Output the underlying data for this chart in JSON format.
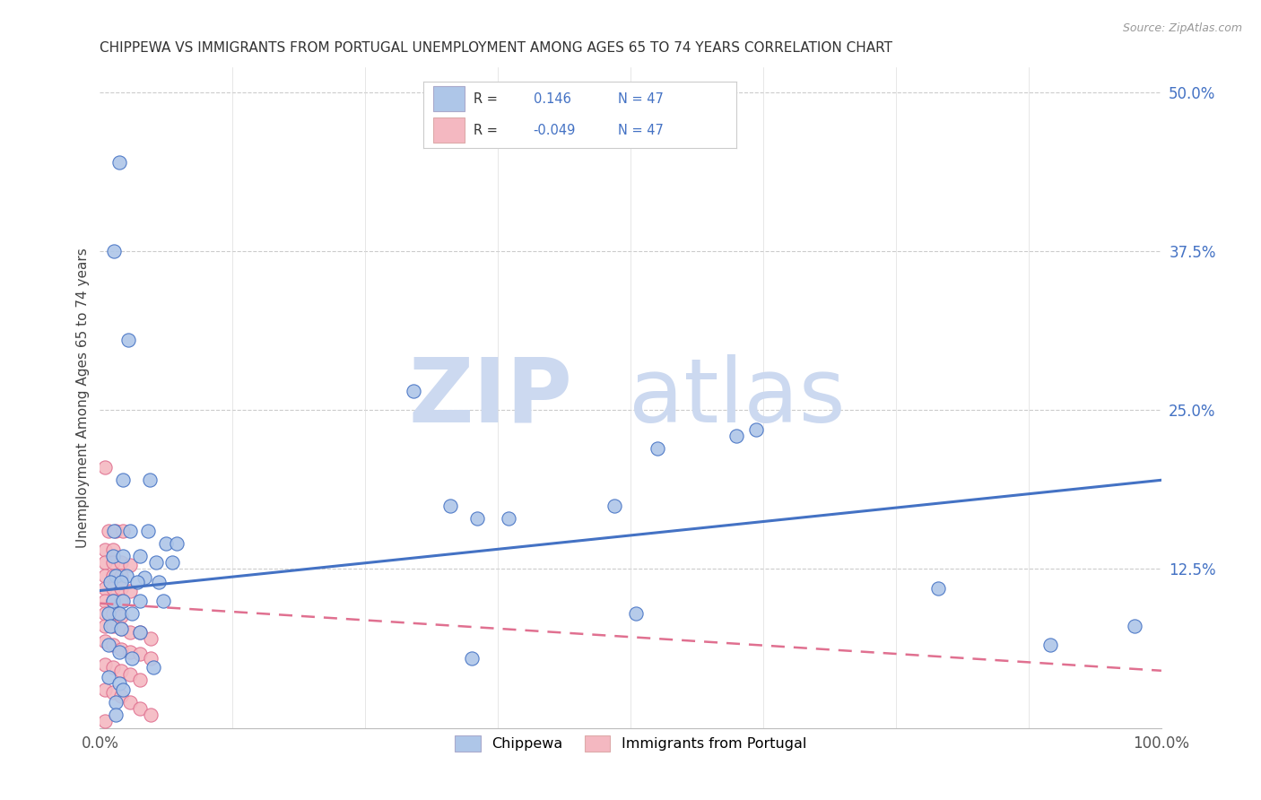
{
  "title": "CHIPPEWA VS IMMIGRANTS FROM PORTUGAL UNEMPLOYMENT AMONG AGES 65 TO 74 YEARS CORRELATION CHART",
  "source": "Source: ZipAtlas.com",
  "ylabel": "Unemployment Among Ages 65 to 74 years",
  "xlim": [
    0.0,
    1.0
  ],
  "ylim": [
    0.0,
    0.52
  ],
  "background_color": "#ffffff",
  "chippewa_color": "#aec6e8",
  "portugal_color": "#f4b8c1",
  "line1_color": "#4472c4",
  "line2_color": "#e07090",
  "legend_R1": "0.146",
  "legend_R2": "-0.049",
  "legend_N": "47",
  "chip_line_x": [
    0.0,
    1.0
  ],
  "chip_line_y": [
    0.108,
    0.195
  ],
  "port_line_x": [
    0.0,
    1.0
  ],
  "port_line_y": [
    0.098,
    0.045
  ],
  "chippewa_points": [
    [
      0.018,
      0.445
    ],
    [
      0.013,
      0.375
    ],
    [
      0.027,
      0.305
    ],
    [
      0.047,
      0.195
    ],
    [
      0.022,
      0.195
    ],
    [
      0.013,
      0.155
    ],
    [
      0.028,
      0.155
    ],
    [
      0.045,
      0.155
    ],
    [
      0.062,
      0.145
    ],
    [
      0.072,
      0.145
    ],
    [
      0.012,
      0.135
    ],
    [
      0.022,
      0.135
    ],
    [
      0.038,
      0.135
    ],
    [
      0.053,
      0.13
    ],
    [
      0.068,
      0.13
    ],
    [
      0.015,
      0.12
    ],
    [
      0.025,
      0.12
    ],
    [
      0.042,
      0.118
    ],
    [
      0.01,
      0.115
    ],
    [
      0.02,
      0.115
    ],
    [
      0.035,
      0.115
    ],
    [
      0.055,
      0.115
    ],
    [
      0.012,
      0.1
    ],
    [
      0.022,
      0.1
    ],
    [
      0.038,
      0.1
    ],
    [
      0.06,
      0.1
    ],
    [
      0.008,
      0.09
    ],
    [
      0.018,
      0.09
    ],
    [
      0.03,
      0.09
    ],
    [
      0.01,
      0.08
    ],
    [
      0.02,
      0.078
    ],
    [
      0.038,
      0.075
    ],
    [
      0.008,
      0.065
    ],
    [
      0.018,
      0.06
    ],
    [
      0.03,
      0.055
    ],
    [
      0.05,
      0.048
    ],
    [
      0.008,
      0.04
    ],
    [
      0.018,
      0.035
    ],
    [
      0.022,
      0.03
    ],
    [
      0.015,
      0.02
    ],
    [
      0.015,
      0.01
    ],
    [
      0.295,
      0.265
    ],
    [
      0.33,
      0.175
    ],
    [
      0.355,
      0.165
    ],
    [
      0.385,
      0.165
    ],
    [
      0.485,
      0.175
    ],
    [
      0.525,
      0.22
    ],
    [
      0.6,
      0.23
    ],
    [
      0.618,
      0.235
    ],
    [
      0.79,
      0.11
    ],
    [
      0.895,
      0.065
    ],
    [
      0.975,
      0.08
    ],
    [
      0.35,
      0.055
    ],
    [
      0.505,
      0.09
    ]
  ],
  "portugal_points": [
    [
      0.005,
      0.205
    ],
    [
      0.008,
      0.155
    ],
    [
      0.015,
      0.155
    ],
    [
      0.022,
      0.155
    ],
    [
      0.005,
      0.14
    ],
    [
      0.012,
      0.14
    ],
    [
      0.005,
      0.13
    ],
    [
      0.012,
      0.13
    ],
    [
      0.02,
      0.13
    ],
    [
      0.028,
      0.128
    ],
    [
      0.005,
      0.12
    ],
    [
      0.012,
      0.12
    ],
    [
      0.02,
      0.12
    ],
    [
      0.005,
      0.11
    ],
    [
      0.012,
      0.11
    ],
    [
      0.02,
      0.11
    ],
    [
      0.028,
      0.108
    ],
    [
      0.005,
      0.1
    ],
    [
      0.012,
      0.1
    ],
    [
      0.02,
      0.1
    ],
    [
      0.005,
      0.09
    ],
    [
      0.012,
      0.09
    ],
    [
      0.02,
      0.088
    ],
    [
      0.005,
      0.08
    ],
    [
      0.012,
      0.08
    ],
    [
      0.02,
      0.078
    ],
    [
      0.028,
      0.075
    ],
    [
      0.038,
      0.075
    ],
    [
      0.048,
      0.07
    ],
    [
      0.005,
      0.068
    ],
    [
      0.012,
      0.065
    ],
    [
      0.02,
      0.062
    ],
    [
      0.028,
      0.06
    ],
    [
      0.038,
      0.058
    ],
    [
      0.048,
      0.055
    ],
    [
      0.005,
      0.05
    ],
    [
      0.012,
      0.048
    ],
    [
      0.02,
      0.045
    ],
    [
      0.028,
      0.042
    ],
    [
      0.038,
      0.038
    ],
    [
      0.005,
      0.03
    ],
    [
      0.012,
      0.028
    ],
    [
      0.02,
      0.025
    ],
    [
      0.028,
      0.02
    ],
    [
      0.038,
      0.015
    ],
    [
      0.048,
      0.01
    ],
    [
      0.005,
      0.005
    ]
  ]
}
